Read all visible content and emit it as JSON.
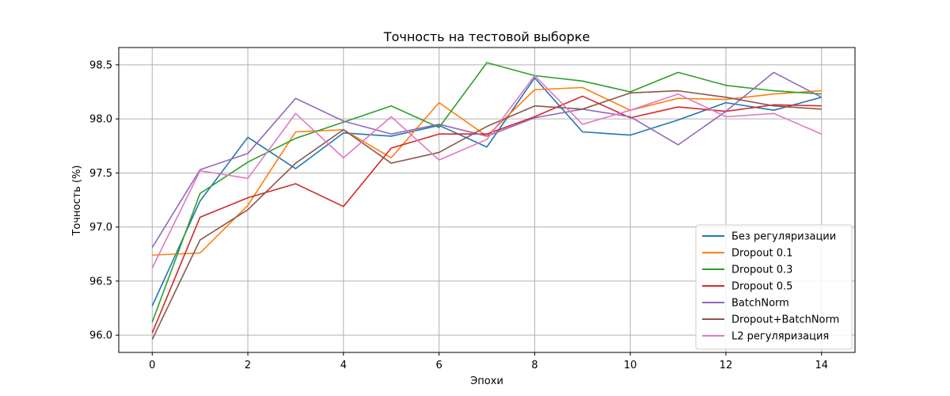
{
  "chart_data": {
    "type": "line",
    "title": "Точность на тестовой выборке",
    "xlabel": "Эпохи",
    "ylabel": "Точность (%)",
    "xlim": [
      -0.7,
      14.7
    ],
    "ylim": [
      95.84,
      98.66
    ],
    "xticks": [
      0,
      2,
      4,
      6,
      8,
      10,
      12,
      14
    ],
    "yticks": [
      96.0,
      96.5,
      97.0,
      97.5,
      98.0,
      98.5
    ],
    "ytick_labels": [
      "96.0",
      "96.5",
      "97.0",
      "97.5",
      "98.0",
      "98.5"
    ],
    "grid": true,
    "legend_position": "bottom-right",
    "x": [
      0,
      1,
      2,
      3,
      4,
      5,
      6,
      7,
      8,
      9,
      10,
      11,
      12,
      13,
      14
    ],
    "series": [
      {
        "name": "Без регуляризации",
        "color": "#1f77b4",
        "values": [
          96.27,
          97.24,
          97.83,
          97.54,
          97.87,
          97.84,
          97.94,
          97.74,
          98.38,
          97.88,
          97.85,
          97.99,
          98.15,
          98.08,
          98.2
        ]
      },
      {
        "name": "Dropout 0.1",
        "color": "#ff7f0e",
        "values": [
          96.74,
          96.76,
          97.2,
          97.88,
          97.9,
          97.64,
          98.15,
          97.84,
          98.27,
          98.29,
          98.08,
          98.19,
          98.18,
          98.23,
          98.26
        ]
      },
      {
        "name": "Dropout 0.3",
        "color": "#2ca02c",
        "values": [
          96.12,
          97.31,
          97.6,
          97.82,
          97.97,
          98.12,
          97.92,
          98.52,
          98.4,
          98.35,
          98.25,
          98.43,
          98.31,
          98.26,
          98.23
        ]
      },
      {
        "name": "Dropout 0.5",
        "color": "#d62728",
        "values": [
          96.02,
          97.09,
          97.27,
          97.4,
          97.19,
          97.73,
          97.86,
          97.86,
          98.02,
          98.21,
          98.01,
          98.11,
          98.07,
          98.13,
          98.12
        ]
      },
      {
        "name": "BatchNorm",
        "color": "#9467bd",
        "values": [
          96.81,
          97.53,
          97.68,
          98.19,
          97.98,
          97.86,
          97.95,
          97.84,
          98.01,
          98.09,
          98.02,
          97.76,
          98.07,
          98.43,
          98.2
        ]
      },
      {
        "name": "Dropout+BatchNorm",
        "color": "#8c564b",
        "values": [
          95.96,
          96.88,
          97.16,
          97.59,
          97.9,
          97.59,
          97.69,
          97.93,
          98.12,
          98.09,
          98.24,
          98.26,
          98.2,
          98.12,
          98.09
        ]
      },
      {
        "name": "L2 регуляризация",
        "color": "#e377c2",
        "values": [
          96.62,
          97.52,
          97.45,
          98.05,
          97.64,
          98.02,
          97.62,
          97.81,
          98.4,
          97.95,
          98.08,
          98.23,
          98.02,
          98.05,
          97.86
        ]
      }
    ]
  }
}
